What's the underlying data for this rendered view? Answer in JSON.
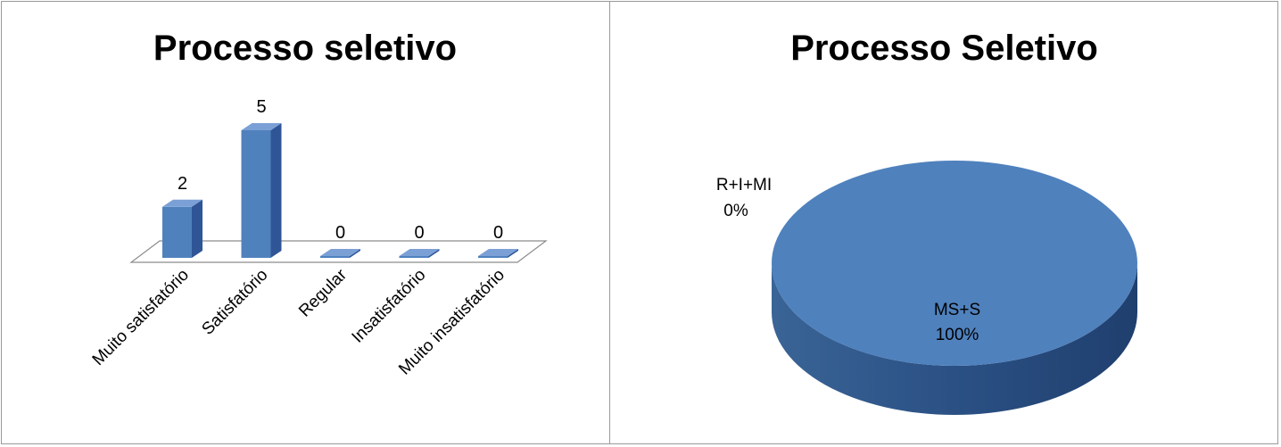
{
  "chart_data": [
    {
      "type": "bar",
      "title": "Processo seletivo",
      "categories": [
        "Muito satisfatório",
        "Satisfatório",
        "Regular",
        "Insatisfatório",
        "Muito insatisfatório"
      ],
      "values": [
        2,
        5,
        0,
        0,
        0
      ],
      "data_labels": [
        "2",
        "5",
        "0",
        "0",
        "0"
      ],
      "three_d": true,
      "color": "#4F81BD",
      "grid": false,
      "legend": "none"
    },
    {
      "type": "pie",
      "title": "Processo Seletivo",
      "labels": [
        "MS+S",
        "R+I+MI"
      ],
      "values": [
        100,
        0
      ],
      "percent_labels": [
        "100%",
        "0%"
      ],
      "three_d": true,
      "color": "#4F81BD",
      "legend": "none"
    }
  ]
}
